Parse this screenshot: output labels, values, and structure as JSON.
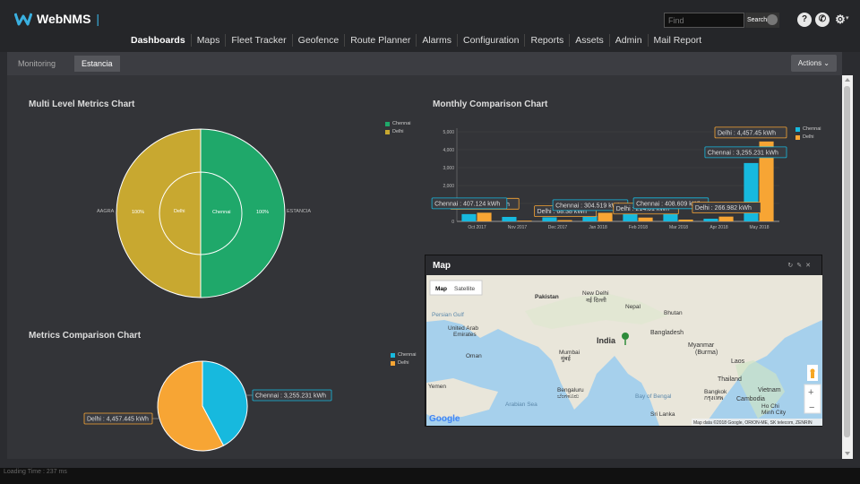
{
  "app": {
    "logo_text": "WebNMS",
    "search_placeholder": "Find",
    "search_button": "Search"
  },
  "header_icons": [
    "help-icon",
    "phone-icon",
    "gear-icon"
  ],
  "nav": [
    "Dashboards",
    "Maps",
    "Fleet Tracker",
    "Geofence",
    "Route Planner",
    "Alarms",
    "Configuration",
    "Reports",
    "Assets",
    "Admin",
    "Mail Report"
  ],
  "tabs": {
    "items": [
      "Monitoring",
      "Estancia"
    ],
    "active": "Estancia",
    "actions_label": "Actions"
  },
  "multi_level": {
    "title": "Multi Level Metrics Chart",
    "outer_left_label": "AAGRA",
    "outer_right_label": "ESTANCIA",
    "left_pct": "100%",
    "right_pct": "100%",
    "inner_left_label": "Delhi",
    "inner_right_label": "Chennai"
  },
  "monthly": {
    "title": "Monthly Comparison Chart"
  },
  "metrics_comparison": {
    "title": "Metrics Comparison Chart"
  },
  "map": {
    "title": "Map",
    "type_map": "Map",
    "type_satellite": "Satellite",
    "attribution": "Map data ©2018 Google, ORION-ME, SK telecom, ZENRIN",
    "google": "Google",
    "labels": [
      {
        "text": "Pakistan"
      },
      {
        "text": "New Delhi"
      },
      {
        "text": "नई दिल्ली"
      },
      {
        "text": "Nepal"
      },
      {
        "text": "Bhutan"
      },
      {
        "text": "Persian Gulf"
      },
      {
        "text": "United Arab"
      },
      {
        "text": "Emirates"
      },
      {
        "text": "India"
      },
      {
        "text": "Bangladesh"
      },
      {
        "text": "Myanmar"
      },
      {
        "text": "(Burma)"
      },
      {
        "text": "Oman"
      },
      {
        "text": "Mumbai"
      },
      {
        "text": "मुंबई"
      },
      {
        "text": "Laos"
      },
      {
        "text": "Thailand"
      },
      {
        "text": "Bengaluru"
      },
      {
        "text": "ಬೆಂಗಳೂರು"
      },
      {
        "text": "Bay of Bengal"
      },
      {
        "text": "Bangkok"
      },
      {
        "text": "กรุงเทพ"
      },
      {
        "text": "Vietnam"
      },
      {
        "text": "Arabian Sea"
      },
      {
        "text": "Cambodia"
      },
      {
        "text": "Ho Chi"
      },
      {
        "text": "Minh City"
      },
      {
        "text": "Yemen"
      },
      {
        "text": "Sri Lanka"
      }
    ]
  },
  "footer": {
    "loading": "Loading Time : 237 ms"
  },
  "colors": {
    "chennai": "#1fa86a",
    "delhi": "#c8a830",
    "blue": "#17b9de",
    "orange": "#f7a534"
  },
  "chart_data": [
    {
      "type": "pie",
      "title": "Multi Level Metrics Chart",
      "rings": [
        {
          "level": "outer",
          "slices": [
            {
              "label": "AAGRA",
              "value": 100,
              "pct_label": "100%"
            },
            {
              "label": "ESTANCIA",
              "value": 100,
              "pct_label": "100%"
            }
          ]
        },
        {
          "level": "inner",
          "slices": [
            {
              "label": "Delhi",
              "value": 1
            },
            {
              "label": "Chennai",
              "value": 1
            }
          ]
        }
      ],
      "legend": [
        "Chennai",
        "Delhi"
      ],
      "legend_placement": "top-right"
    },
    {
      "type": "bar",
      "title": "Monthly Comparison Chart",
      "categories": [
        "Oct 2017",
        "Nov 2017",
        "Dec 2017",
        "Jan 2018",
        "Feb 2018",
        "Mar 2018",
        "Apr 2018",
        "May 2018"
      ],
      "series": [
        {
          "name": "Chennai",
          "values": [
            407.124,
            250,
            230,
            304.519,
            480,
            408.609,
            150,
            3255.231
          ]
        },
        {
          "name": "Delhi",
          "values": [
            483.634,
            40,
            68.38,
            480,
            214.01,
            100,
            266.982,
            4457.45
          ]
        }
      ],
      "yticks": [
        "0",
        "1,000",
        "2,000",
        "3,000",
        "4,000",
        "5,000"
      ],
      "ylim": [
        0,
        5000
      ],
      "tooltips": [
        {
          "text": "Delhi : 483.634 kWh",
          "series": "Delhi",
          "index": 0
        },
        {
          "text": "Chennai : 407.124 kWh",
          "series": "Chennai",
          "index": 0
        },
        {
          "text": "Delhi : 68.38 kWh",
          "series": "Delhi",
          "index": 2
        },
        {
          "text": "Chennai : 304.519 kWh",
          "series": "Chennai",
          "index": 3
        },
        {
          "text": "Delhi : 214.01 kWh",
          "series": "Delhi",
          "index": 4
        },
        {
          "text": "Chennai : 408.609 kWh",
          "series": "Chennai",
          "index": 5
        },
        {
          "text": "Delhi : 266.982 kWh",
          "series": "Delhi",
          "index": 6
        },
        {
          "text": "Chennai : 3,255.231 kWh",
          "series": "Chennai",
          "index": 7
        },
        {
          "text": "Delhi : 4,457.45 kWh",
          "series": "Delhi",
          "index": 7
        }
      ],
      "legend": [
        "Chennai",
        "Delhi"
      ],
      "legend_placement": "top-right"
    },
    {
      "type": "pie",
      "title": "Metrics Comparison Chart",
      "slices": [
        {
          "label": "Chennai",
          "value": 3255.231,
          "callout": "Chennai : 3,255.231 kWh"
        },
        {
          "label": "Delhi",
          "value": 4457.445,
          "callout": "Delhi : 4,457.445 kWh"
        }
      ],
      "legend": [
        "Chennai",
        "Delhi"
      ],
      "legend_placement": "top-right"
    }
  ]
}
